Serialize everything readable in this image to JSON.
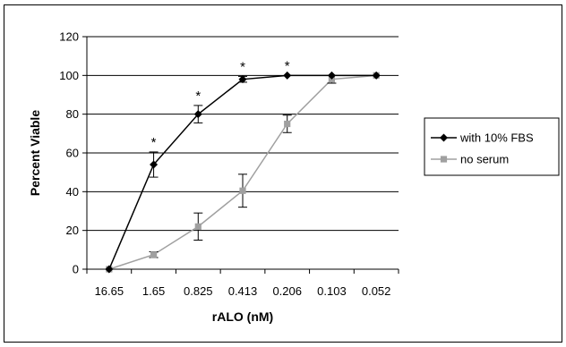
{
  "chart_data": {
    "type": "line",
    "categories": [
      "16.65",
      "1.65",
      "0.825",
      "0.413",
      "0.206",
      "0.103",
      "0.052"
    ],
    "xlabel": "rALO (nM)",
    "ylabel": "Percent Viable",
    "ylim": [
      0,
      120
    ],
    "yticks": [
      "0",
      "20",
      "40",
      "60",
      "80",
      "100",
      "120"
    ],
    "grid": true,
    "legend_position": "right",
    "series": [
      {
        "name": "with 10% FBS",
        "color": "#000000",
        "marker": "diamond",
        "values": [
          0,
          54,
          80,
          98,
          100,
          100,
          100
        ],
        "errors": [
          0,
          6.5,
          4.5,
          1.5,
          0,
          0,
          0
        ]
      },
      {
        "name": "no serum",
        "color": "#a0a0a0",
        "marker": "square",
        "values": [
          0,
          7.5,
          22,
          40.5,
          75,
          98,
          100
        ],
        "errors": [
          0,
          1.5,
          7,
          8.5,
          4.5,
          2,
          0
        ]
      }
    ],
    "annotations": [
      {
        "category": "1.65",
        "text": "*"
      },
      {
        "category": "0.825",
        "text": "*"
      },
      {
        "category": "0.413",
        "text": "*"
      },
      {
        "category": "0.206",
        "text": "*"
      }
    ]
  }
}
